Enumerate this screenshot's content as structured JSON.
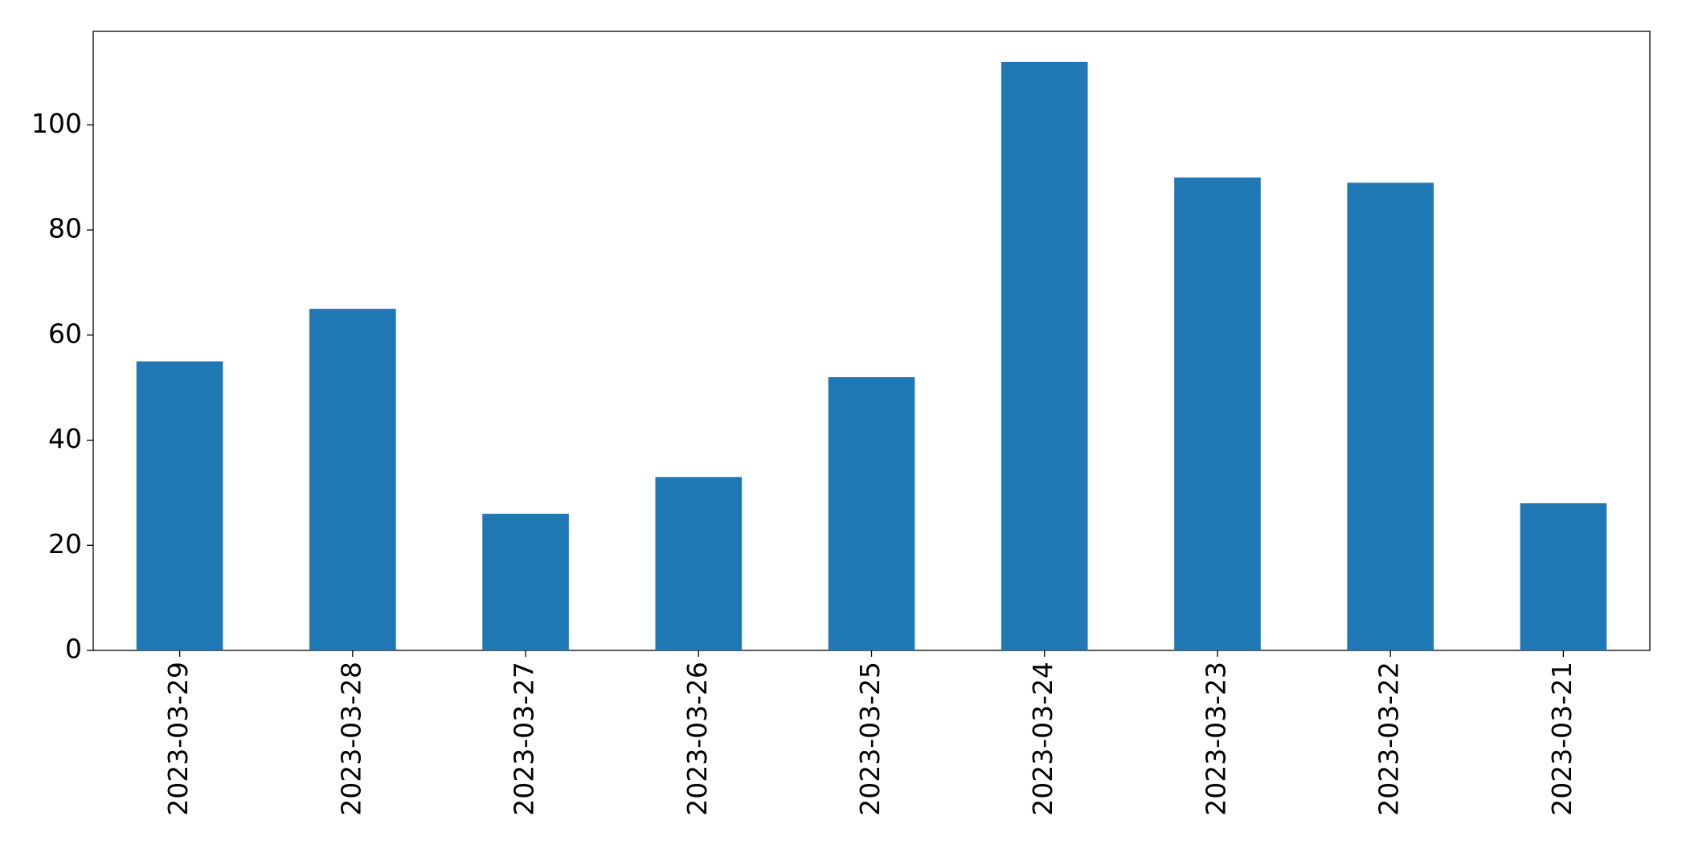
{
  "chart_data": {
    "type": "bar",
    "categories": [
      "2023-03-29",
      "2023-03-28",
      "2023-03-27",
      "2023-03-26",
      "2023-03-25",
      "2023-03-24",
      "2023-03-23",
      "2023-03-22",
      "2023-03-21"
    ],
    "values": [
      55,
      65,
      26,
      33,
      52,
      112,
      90,
      89,
      28
    ],
    "color": "#1f77b4",
    "ylim": [
      0,
      117.8
    ],
    "yticks": [
      0,
      20,
      40,
      60,
      80,
      100
    ],
    "grid": false
  }
}
